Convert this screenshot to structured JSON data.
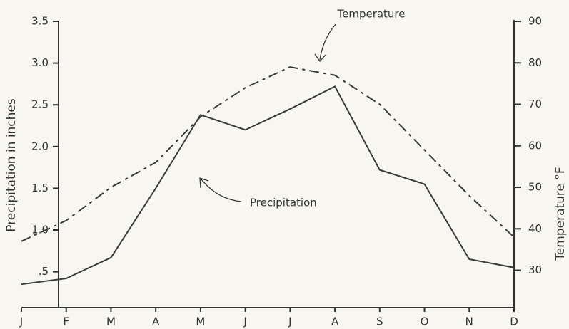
{
  "chart_data": {
    "type": "line",
    "categories": [
      "J",
      "F",
      "M",
      "A",
      "M",
      "J",
      "J",
      "A",
      "S",
      "O",
      "N",
      "D"
    ],
    "series": [
      {
        "name": "Precipitation",
        "color": "#3a3a3a",
        "values": [
          0.35,
          0.42,
          0.67,
          1.5,
          2.38,
          2.2,
          2.45,
          2.72,
          1.72,
          1.55,
          0.65,
          0.55
        ]
      },
      {
        "name": "Temperature",
        "color": "#3a3a3a",
        "axis": "y2",
        "dash": true,
        "values": [
          37,
          42,
          50,
          56,
          67,
          74,
          79,
          77,
          70,
          59,
          48,
          38
        ]
      }
    ],
    "ylabel": "Precipitation in inches",
    "y2label": "Temperature °F",
    "ylim": [
      0.07,
      3.5
    ],
    "yticks": [
      {
        "value": 0.5,
        "label": ".5"
      },
      {
        "value": 1,
        "label": "1.0"
      },
      1.5,
      {
        "value": 2,
        "label": "2.0"
      },
      2.5,
      {
        "value": 3,
        "label": "3.0"
      },
      3.5
    ],
    "y2lim": [
      21,
      90
    ],
    "y2ticks": [
      30,
      40,
      50,
      60,
      70,
      80,
      90
    ]
  }
}
